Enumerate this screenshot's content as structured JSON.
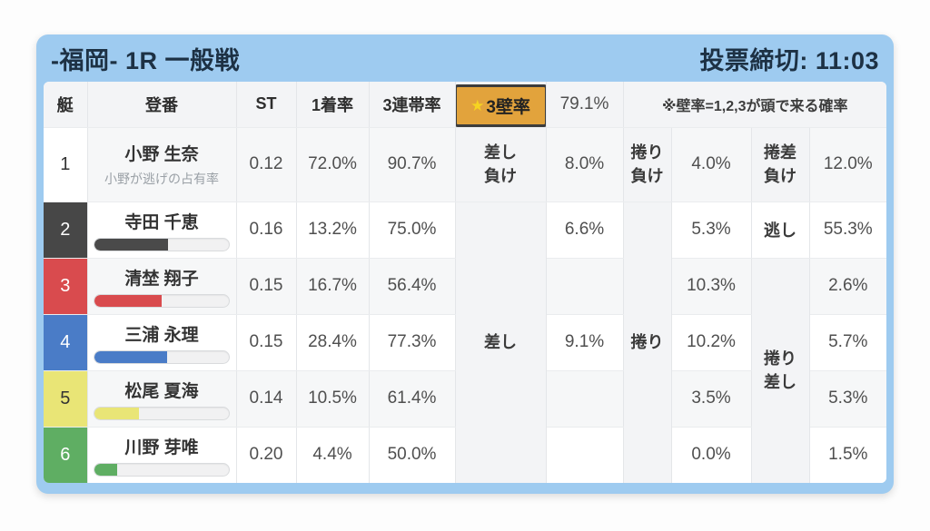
{
  "header": {
    "title": "-福岡- 1R 一般戦",
    "deadline": "投票締切: 11:03"
  },
  "colors": {
    "accent_blue": "#9ecbf0",
    "title_text": "#1d3144",
    "wall_badge_bg": "#e2a33c",
    "wall_badge_border": "#3c3c3c",
    "star": "#f6d321"
  },
  "icons": {
    "star": "★"
  },
  "columns": {
    "boat": "艇",
    "racer": "登番",
    "st": "ST",
    "win_rate": "1着率",
    "top3_rate": "3連帯率",
    "wall_rate": "3壁率",
    "wall_value": "79.1%",
    "note": "※壁率=1,2,3が頭で来る確率"
  },
  "scenarios": {
    "sashi_lose": "差し\n負け",
    "makuri_lose": "捲り\n負け",
    "makurizashi_lose": "捲差\n負け",
    "sashi": "差し",
    "makuri": "捲り",
    "nogashi": "逃し",
    "makurizashi": "捲り\n差し"
  },
  "rows": [
    {
      "boat": "1",
      "name": "小野 生奈",
      "subtext": "小野が逃げの占有率",
      "st": "0.12",
      "win": "72.0%",
      "top3": "90.7%",
      "sashi": "8.0%",
      "makuri": "4.0%",
      "third": "12.0%",
      "colors": {
        "bg": "#ffffff",
        "fg": "#333333"
      }
    },
    {
      "boat": "2",
      "name": "寺田 千恵",
      "st": "0.16",
      "win": "13.2%",
      "top3": "75.0%",
      "sashi": "6.6%",
      "makuri": "5.3%",
      "third": "55.3%",
      "bar": {
        "pct": 55,
        "color": "#4a4a4a"
      },
      "colors": {
        "bg": "#474747",
        "fg": "#ffffff"
      }
    },
    {
      "boat": "3",
      "name": "清埜 翔子",
      "st": "0.15",
      "win": "16.7%",
      "top3": "56.4%",
      "sashi": "",
      "makuri": "10.3%",
      "third": "2.6%",
      "bar": {
        "pct": 50,
        "color": "#d94b4e"
      },
      "colors": {
        "bg": "#d94b4e",
        "fg": "#ffffff"
      }
    },
    {
      "boat": "4",
      "name": "三浦 永理",
      "st": "0.15",
      "win": "28.4%",
      "top3": "77.3%",
      "sashi": "9.1%",
      "makuri": "10.2%",
      "third": "5.7%",
      "bar": {
        "pct": 54,
        "color": "#4a7cc7"
      },
      "colors": {
        "bg": "#4a7cc7",
        "fg": "#ffffff"
      }
    },
    {
      "boat": "5",
      "name": "松尾 夏海",
      "st": "0.14",
      "win": "10.5%",
      "top3": "61.4%",
      "sashi": "",
      "makuri": "3.5%",
      "third": "5.3%",
      "bar": {
        "pct": 33,
        "color": "#e9e576"
      },
      "colors": {
        "bg": "#e9e576",
        "fg": "#333333"
      }
    },
    {
      "boat": "6",
      "name": "川野 芽唯",
      "st": "0.20",
      "win": "4.4%",
      "top3": "50.0%",
      "sashi": "",
      "makuri": "0.0%",
      "third": "1.5%",
      "bar": {
        "pct": 17,
        "color": "#5fae63"
      },
      "colors": {
        "bg": "#5fae63",
        "fg": "#ffffff"
      }
    }
  ]
}
